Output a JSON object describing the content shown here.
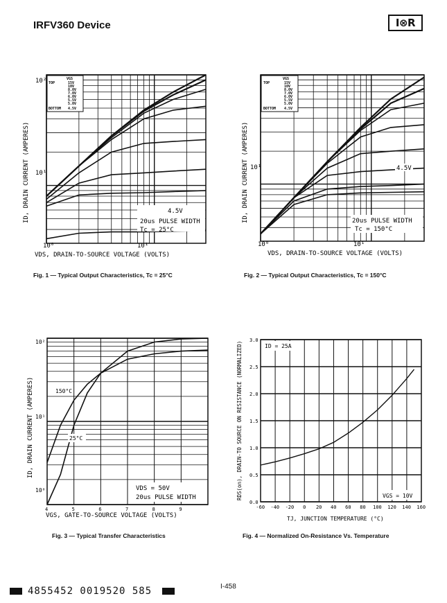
{
  "header": {
    "title": "IRFV360 Device",
    "logo": "I⊗R"
  },
  "footer": {
    "code": "4855452 0019520 585",
    "page_number": "I-458"
  },
  "captions": {
    "fig1": "Fig. 1 — Typical Output Characteristics, Tc = 25°C",
    "fig2": "Fig. 2 — Typical Output Characteristics, Tc = 150°C",
    "fig3": "Fig. 3 — Typical Transfer Characteristics",
    "fig4": "Fig. 4 — Normalized On-Resistance Vs. Temperature"
  },
  "colors": {
    "ink": "#111111",
    "background": "#ffffff"
  },
  "chart_data": [
    {
      "id": "fig1",
      "type": "line",
      "scale": "log-log",
      "xlabel": "VDS, DRAIN-TO-SOURCE VOLTAGE (VOLTS)",
      "ylabel": "ID, DRAIN CURRENT (AMPERES)",
      "x_ticks": [
        "10^0",
        "10^1"
      ],
      "y_ticks": [
        "10^1",
        "10^2"
      ],
      "xlim": [
        1,
        30
      ],
      "ylim": [
        3,
        100
      ],
      "legend": {
        "header": "VGS",
        "top_label": "TOP",
        "bottom_label": "BOTTOM",
        "entries": [
          "15V",
          "10V",
          "8.0V",
          "7.0V",
          "6.0V",
          "5.5V",
          "5.0V",
          "4.5V"
        ]
      },
      "annotations": [
        "4.5V",
        "20us PULSE WIDTH",
        "Tc = 25°C"
      ],
      "series": [
        {
          "name": "15V",
          "x": [
            1,
            2,
            4,
            8,
            15,
            30
          ],
          "y": [
            8,
            15,
            28,
            48,
            70,
            100
          ]
        },
        {
          "name": "10V",
          "x": [
            1,
            2,
            4,
            8,
            15,
            30
          ],
          "y": [
            8,
            15,
            28,
            47,
            66,
            90
          ]
        },
        {
          "name": "8.0V",
          "x": [
            1,
            2,
            4,
            8,
            15,
            30
          ],
          "y": [
            8,
            15,
            27,
            45,
            60,
            74
          ]
        },
        {
          "name": "7.0V",
          "x": [
            1,
            2,
            4,
            8,
            15,
            30
          ],
          "y": [
            8,
            15,
            26,
            40,
            48,
            52
          ]
        },
        {
          "name": "6.0V",
          "x": [
            1,
            2,
            4,
            8,
            15,
            30
          ],
          "y": [
            7.5,
            13,
            20,
            24,
            25,
            26
          ]
        },
        {
          "name": "5.5V",
          "x": [
            1,
            2,
            4,
            8,
            15,
            30
          ],
          "y": [
            7,
            10.5,
            12.5,
            13,
            13.5,
            14
          ]
        },
        {
          "name": "5.0V",
          "x": [
            1,
            2,
            4,
            8,
            15,
            30
          ],
          "y": [
            6.5,
            8.2,
            8.5,
            8.6,
            8.8,
            9
          ]
        },
        {
          "name": "4.5V",
          "x": [
            1,
            2,
            4,
            8,
            15,
            30
          ],
          "y": [
            3.3,
            3.7,
            3.8,
            3.8,
            3.85,
            3.9
          ]
        }
      ]
    },
    {
      "id": "fig2",
      "type": "line",
      "scale": "log-log",
      "xlabel": "VDS, DRAIN-TO-SOURCE VOLTAGE (VOLTS)",
      "ylabel": "ID, DRAIN CURRENT (AMPERES)",
      "x_ticks": [
        "10^0",
        "10^1"
      ],
      "y_ticks": [
        "10^1"
      ],
      "xlim": [
        1,
        30
      ],
      "ylim": [
        3,
        100
      ],
      "legend": {
        "header": "VGS",
        "top_label": "TOP",
        "bottom_label": "BOTTOM",
        "entries": [
          "15V",
          "10V",
          "8.0V",
          "7.0V",
          "6.0V",
          "5.5V",
          "5.0V",
          "4.5V"
        ]
      },
      "annotations": [
        "4.5V",
        "20us PULSE WIDTH",
        "Tc = 150°C"
      ],
      "series": [
        {
          "name": "15V",
          "x": [
            1,
            2,
            4,
            8,
            15,
            30
          ],
          "y": [
            3.5,
            7.5,
            16,
            33,
            60,
            95
          ]
        },
        {
          "name": "10V",
          "x": [
            1,
            2,
            4,
            8,
            15,
            30
          ],
          "y": [
            3.5,
            7.5,
            16,
            32,
            55,
            75
          ]
        },
        {
          "name": "8.0V",
          "x": [
            1,
            2,
            4,
            8,
            15,
            30
          ],
          "y": [
            3.5,
            7.5,
            16,
            31,
            48,
            55
          ]
        },
        {
          "name": "7.0V",
          "x": [
            1,
            2,
            4,
            8,
            15,
            30
          ],
          "y": [
            3.5,
            7.5,
            15.5,
            27,
            33,
            35
          ]
        },
        {
          "name": "6.0V",
          "x": [
            1,
            2,
            4,
            8,
            15,
            30
          ],
          "y": [
            3.5,
            7.5,
            14,
            19,
            20,
            21
          ]
        },
        {
          "name": "5.5V",
          "x": [
            1,
            2,
            4,
            8,
            15,
            30
          ],
          "y": [
            3.5,
            7.5,
            12,
            13,
            13.5,
            14
          ]
        },
        {
          "name": "5.0V",
          "x": [
            1,
            2,
            4,
            8,
            15,
            30
          ],
          "y": [
            3.5,
            7,
            9,
            9.5,
            9.7,
            10
          ]
        },
        {
          "name": "4.5V",
          "x": [
            1,
            2,
            4,
            8,
            15,
            30
          ],
          "y": [
            3.5,
            6.5,
            8,
            8.3,
            8.4,
            8.5
          ]
        }
      ]
    },
    {
      "id": "fig3",
      "type": "line",
      "scale": "log-y",
      "xlabel": "VGS, GATE-TO-SOURCE VOLTAGE (VOLTS)",
      "ylabel": "ID, DRAIN CURRENT (AMPERES)",
      "x_ticks": [
        "4",
        "5",
        "6",
        "7",
        "8",
        "9"
      ],
      "y_ticks": [
        "10^0",
        "10^1",
        "10^2"
      ],
      "xlim": [
        4,
        10
      ],
      "ylim": [
        1,
        100
      ],
      "annotations": [
        "150°C",
        "25°C",
        "VDS = 50V",
        "20us PULSE WIDTH"
      ],
      "series": [
        {
          "name": "150°C",
          "x": [
            4,
            4.5,
            5,
            5.5,
            6,
            7,
            8,
            9,
            10
          ],
          "y": [
            3.2,
            9,
            18,
            28,
            38,
            56,
            65,
            70,
            72
          ]
        },
        {
          "name": "25°C",
          "x": [
            4,
            4.5,
            5,
            5.5,
            6,
            7,
            8,
            9,
            10
          ],
          "y": [
            0.8,
            2.3,
            9,
            22,
            38,
            70,
            90,
            98,
            100
          ]
        }
      ]
    },
    {
      "id": "fig4",
      "type": "line",
      "scale": "linear",
      "xlabel": "TJ, JUNCTION TEMPERATURE (°C)",
      "ylabel": "RDS(on), DRAIN-TO SOURCE ON RESISTANCE (NORMALIZED)",
      "x_ticks": [
        "-60",
        "-40",
        "-20",
        "0",
        "20",
        "40",
        "60",
        "80",
        "100",
        "120",
        "140",
        "160"
      ],
      "y_ticks": [
        "0.0",
        "0.5",
        "1.0",
        "1.5",
        "2.0",
        "2.5",
        "3.0"
      ],
      "xlim": [
        -60,
        160
      ],
      "ylim": [
        0,
        3.0
      ],
      "annotations": [
        "ID = 25A",
        "VGS = 10V"
      ],
      "series": [
        {
          "name": "ID = 25A",
          "x": [
            -60,
            -40,
            -20,
            0,
            20,
            40,
            60,
            80,
            100,
            120,
            140,
            150
          ],
          "y": [
            0.68,
            0.74,
            0.81,
            0.89,
            0.98,
            1.1,
            1.27,
            1.47,
            1.7,
            1.97,
            2.28,
            2.45
          ]
        }
      ]
    }
  ]
}
